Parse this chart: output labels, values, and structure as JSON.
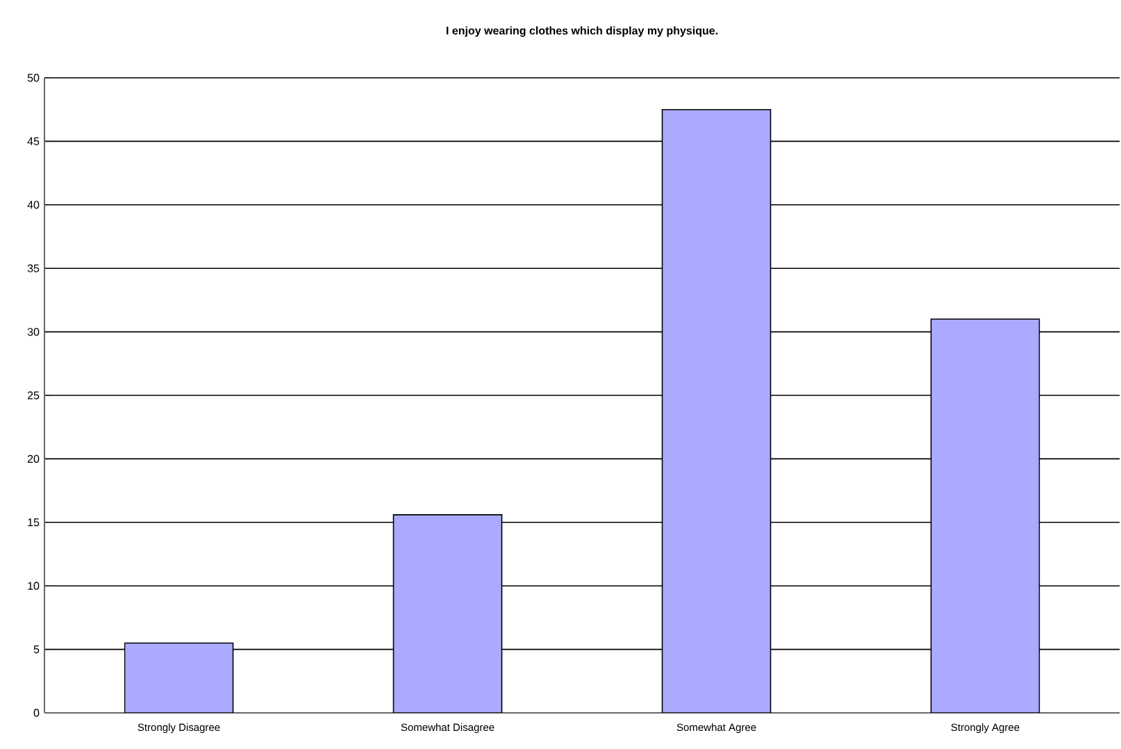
{
  "chart_data": {
    "type": "bar",
    "title": "I enjoy wearing clothes which display my physique.",
    "categories": [
      "Strongly Disagree",
      "Somewhat Disagree",
      "Somewhat Agree",
      "Strongly Agree"
    ],
    "values": [
      5.5,
      15.6,
      47.5,
      31.0
    ],
    "color": "#aaaaff",
    "ylim": [
      0,
      50
    ],
    "yticks": [
      0,
      5,
      10,
      15,
      20,
      25,
      30,
      35,
      40,
      45,
      50
    ],
    "grid": "y"
  }
}
